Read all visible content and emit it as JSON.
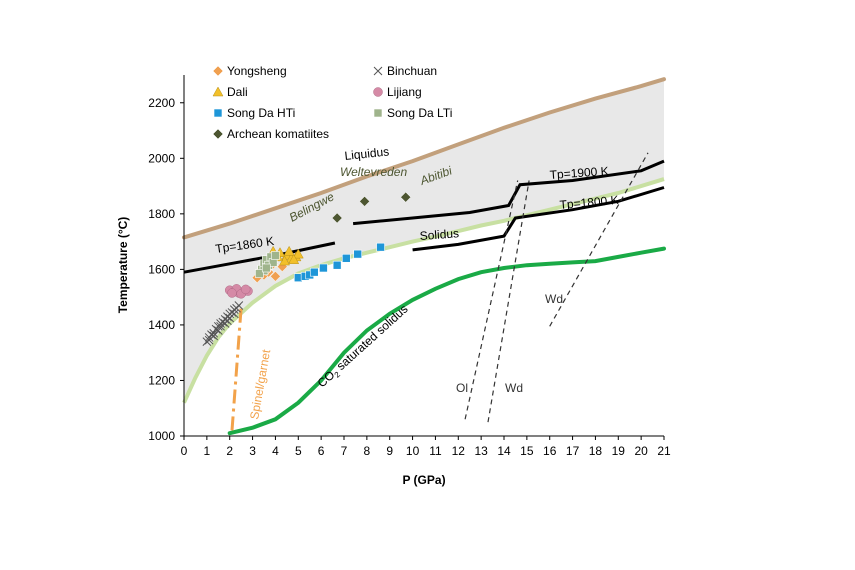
{
  "chart_data": {
    "type": "scatter",
    "xlabel": "P (GPa)",
    "ylabel": "Temperature (°C)",
    "xlim": [
      0,
      21
    ],
    "ylim": [
      1000,
      2300
    ],
    "xticks": [
      "0",
      "1",
      "2",
      "3",
      "4",
      "5",
      "6",
      "7",
      "8",
      "9",
      "10",
      "11",
      "12",
      "13",
      "14",
      "15",
      "16",
      "17",
      "18",
      "19",
      "20",
      "21"
    ],
    "yticks": [
      "1000",
      "1200",
      "1400",
      "1600",
      "1800",
      "2000",
      "2200"
    ],
    "grid": false,
    "legend_position": "top-left inside",
    "legend": [
      {
        "label": "Yongsheng",
        "marker": "diamond",
        "color": "#f0a050"
      },
      {
        "label": "Binchuan",
        "marker": "x",
        "color": "#555555"
      },
      {
        "label": "Dali",
        "marker": "triangle",
        "color": "#f2c02a"
      },
      {
        "label": "Lijiang",
        "marker": "circle",
        "color": "#d58aa6"
      },
      {
        "label": "Song Da HTi",
        "marker": "square",
        "color": "#1e96d8"
      },
      {
        "label": "Song Da LTi",
        "marker": "square",
        "color": "#9fb48c"
      },
      {
        "label": "Archean komatiites",
        "marker": "diamond",
        "color": "#4d5631"
      }
    ],
    "series": [
      {
        "name": "Song Da HTi",
        "marker": "square",
        "color": "#1e96d8",
        "points": [
          [
            5.0,
            1570
          ],
          [
            5.3,
            1575
          ],
          [
            5.5,
            1580
          ],
          [
            5.7,
            1590
          ],
          [
            6.1,
            1605
          ],
          [
            6.7,
            1615
          ],
          [
            7.1,
            1640
          ],
          [
            7.6,
            1655
          ],
          [
            8.6,
            1680
          ]
        ]
      },
      {
        "name": "Archean komatiites",
        "marker": "diamond",
        "color": "#4d5631",
        "points": [
          [
            6.7,
            1785
          ],
          [
            7.9,
            1845
          ],
          [
            9.7,
            1860
          ]
        ]
      },
      {
        "name": "Yongsheng",
        "marker": "diamond",
        "color": "#f0a050",
        "points": [
          [
            3.2,
            1570
          ],
          [
            3.5,
            1580
          ],
          [
            3.7,
            1590
          ],
          [
            4.0,
            1575
          ],
          [
            3.4,
            1600
          ],
          [
            4.3,
            1610
          ],
          [
            3.9,
            1620
          ],
          [
            3.6,
            1595
          ]
        ]
      },
      {
        "name": "Dali",
        "marker": "triangle",
        "color": "#f2c02a",
        "points": [
          [
            4.2,
            1660
          ],
          [
            4.5,
            1650
          ],
          [
            4.7,
            1640
          ],
          [
            4.9,
            1645
          ],
          [
            4.4,
            1630
          ],
          [
            5.0,
            1655
          ],
          [
            4.6,
            1665
          ],
          [
            4.8,
            1635
          ],
          [
            4.1,
            1645
          ],
          [
            3.9,
            1665
          ]
        ]
      },
      {
        "name": "Song Da LTi",
        "marker": "square",
        "color": "#9fb48c",
        "points": [
          [
            3.4,
            1600
          ],
          [
            3.5,
            1620
          ],
          [
            3.6,
            1635
          ],
          [
            3.7,
            1615
          ],
          [
            3.8,
            1645
          ],
          [
            3.9,
            1625
          ],
          [
            3.5,
            1595
          ],
          [
            3.3,
            1585
          ],
          [
            4.0,
            1650
          ],
          [
            3.6,
            1605
          ]
        ]
      },
      {
        "name": "Lijiang",
        "marker": "circle",
        "color": "#d58aa6",
        "points": [
          [
            2.0,
            1525
          ],
          [
            2.2,
            1520
          ],
          [
            2.4,
            1515
          ],
          [
            2.6,
            1520
          ],
          [
            2.8,
            1522
          ],
          [
            2.3,
            1530
          ],
          [
            2.5,
            1512
          ],
          [
            2.1,
            1515
          ],
          [
            2.7,
            1528
          ]
        ]
      },
      {
        "name": "Binchuan",
        "marker": "x",
        "color": "#555555",
        "points": [
          [
            1.0,
            1340
          ],
          [
            1.1,
            1355
          ],
          [
            1.2,
            1365
          ],
          [
            1.3,
            1370
          ],
          [
            1.4,
            1385
          ],
          [
            1.5,
            1395
          ],
          [
            1.6,
            1405
          ],
          [
            1.7,
            1410
          ],
          [
            1.8,
            1420
          ],
          [
            1.9,
            1430
          ],
          [
            2.0,
            1440
          ],
          [
            2.1,
            1445
          ],
          [
            2.2,
            1455
          ],
          [
            2.3,
            1460
          ],
          [
            2.4,
            1470
          ],
          [
            1.5,
            1380
          ],
          [
            1.6,
            1395
          ],
          [
            1.8,
            1405
          ],
          [
            2.0,
            1425
          ],
          [
            1.3,
            1360
          ],
          [
            1.1,
            1345
          ],
          [
            2.2,
            1440
          ],
          [
            1.9,
            1415
          ]
        ]
      }
    ],
    "curves": {
      "liquidus": [
        [
          0,
          1715
        ],
        [
          2,
          1765
        ],
        [
          4,
          1820
        ],
        [
          6,
          1875
        ],
        [
          8,
          1935
        ],
        [
          10,
          1990
        ],
        [
          12,
          2050
        ],
        [
          14,
          2110
        ],
        [
          16,
          2165
        ],
        [
          18,
          2215
        ],
        [
          20,
          2260
        ],
        [
          21,
          2285
        ]
      ],
      "solidus": [
        [
          0,
          1120
        ],
        [
          0.5,
          1210
        ],
        [
          1,
          1290
        ],
        [
          1.5,
          1355
        ],
        [
          2,
          1405
        ],
        [
          3,
          1480
        ],
        [
          4,
          1540
        ],
        [
          5,
          1585
        ],
        [
          6,
          1615
        ],
        [
          7,
          1640
        ],
        [
          8,
          1660
        ],
        [
          9,
          1680
        ],
        [
          10,
          1700
        ],
        [
          11,
          1718
        ],
        [
          12,
          1738
        ],
        [
          13,
          1758
        ],
        [
          14,
          1775
        ],
        [
          15,
          1795
        ],
        [
          16,
          1815
        ],
        [
          17,
          1835
        ],
        [
          18,
          1855
        ],
        [
          19,
          1875
        ],
        [
          20,
          1900
        ],
        [
          21,
          1925
        ]
      ],
      "co2_solidus": [
        [
          2,
          1010
        ],
        [
          3,
          1030
        ],
        [
          4,
          1060
        ],
        [
          5,
          1120
        ],
        [
          6,
          1200
        ],
        [
          7,
          1300
        ],
        [
          8,
          1380
        ],
        [
          9,
          1440
        ],
        [
          10,
          1490
        ],
        [
          11,
          1530
        ],
        [
          12,
          1565
        ],
        [
          13,
          1590
        ],
        [
          14,
          1605
        ],
        [
          15,
          1615
        ],
        [
          16,
          1620
        ],
        [
          17,
          1625
        ],
        [
          18,
          1630
        ],
        [
          19,
          1645
        ],
        [
          20,
          1660
        ],
        [
          21,
          1675
        ]
      ],
      "tp1860_segment1": [
        [
          0,
          1590
        ],
        [
          2,
          1620
        ],
        [
          4,
          1650
        ],
        [
          6.6,
          1695
        ]
      ],
      "tp1860_segment2": [
        [
          7.4,
          1765
        ],
        [
          10,
          1785
        ],
        [
          12.5,
          1805
        ],
        [
          14.2,
          1830
        ],
        [
          14.7,
          1905
        ],
        [
          17,
          1920
        ],
        [
          20,
          1955
        ],
        [
          21,
          1990
        ]
      ],
      "tp1800": [
        [
          10,
          1670
        ],
        [
          12,
          1690
        ],
        [
          14,
          1720
        ],
        [
          14.5,
          1785
        ],
        [
          17,
          1815
        ],
        [
          19,
          1845
        ],
        [
          21,
          1895
        ]
      ],
      "ol_dashed": [
        [
          12.3,
          1060
        ],
        [
          14.6,
          1920
        ]
      ],
      "wd_dashed": [
        [
          13.3,
          1050
        ],
        [
          15.1,
          1920
        ]
      ],
      "wd_dashed_upper": [
        [
          16,
          1395
        ],
        [
          20.3,
          2020
        ]
      ],
      "spinel_garnet": [
        [
          2.1,
          1020
        ],
        [
          2.5,
          1460
        ]
      ]
    },
    "annotations": {
      "liquidus": "Liquidus",
      "solidus": "Solidus",
      "tp1860": "Tp=1860 K",
      "tp1900": "Tp=1900 K",
      "tp1800": "Tp=1800 K",
      "belingwe": "Belingwe",
      "weltevreden": "Weltevreden",
      "abitibi": "Abitibi",
      "co2_solidus_prefix": "CO",
      "co2_solidus_sub": "2",
      "co2_solidus_suffix": " saturated solidus",
      "spinel_garnet": "Spinel/garnet",
      "ol": "Ol",
      "wd_lower": "Wd",
      "wd_upper": "Wd"
    },
    "colors": {
      "liquidus": "#c2a07c",
      "solidus_light": "#c8e0a2",
      "melt_region": "#e8e8e8",
      "co2_solidus": "#1aaa46",
      "spinel_garnet": "#f2a24a",
      "annotation_green": "#4d5631",
      "adiabat": "#000000"
    }
  }
}
